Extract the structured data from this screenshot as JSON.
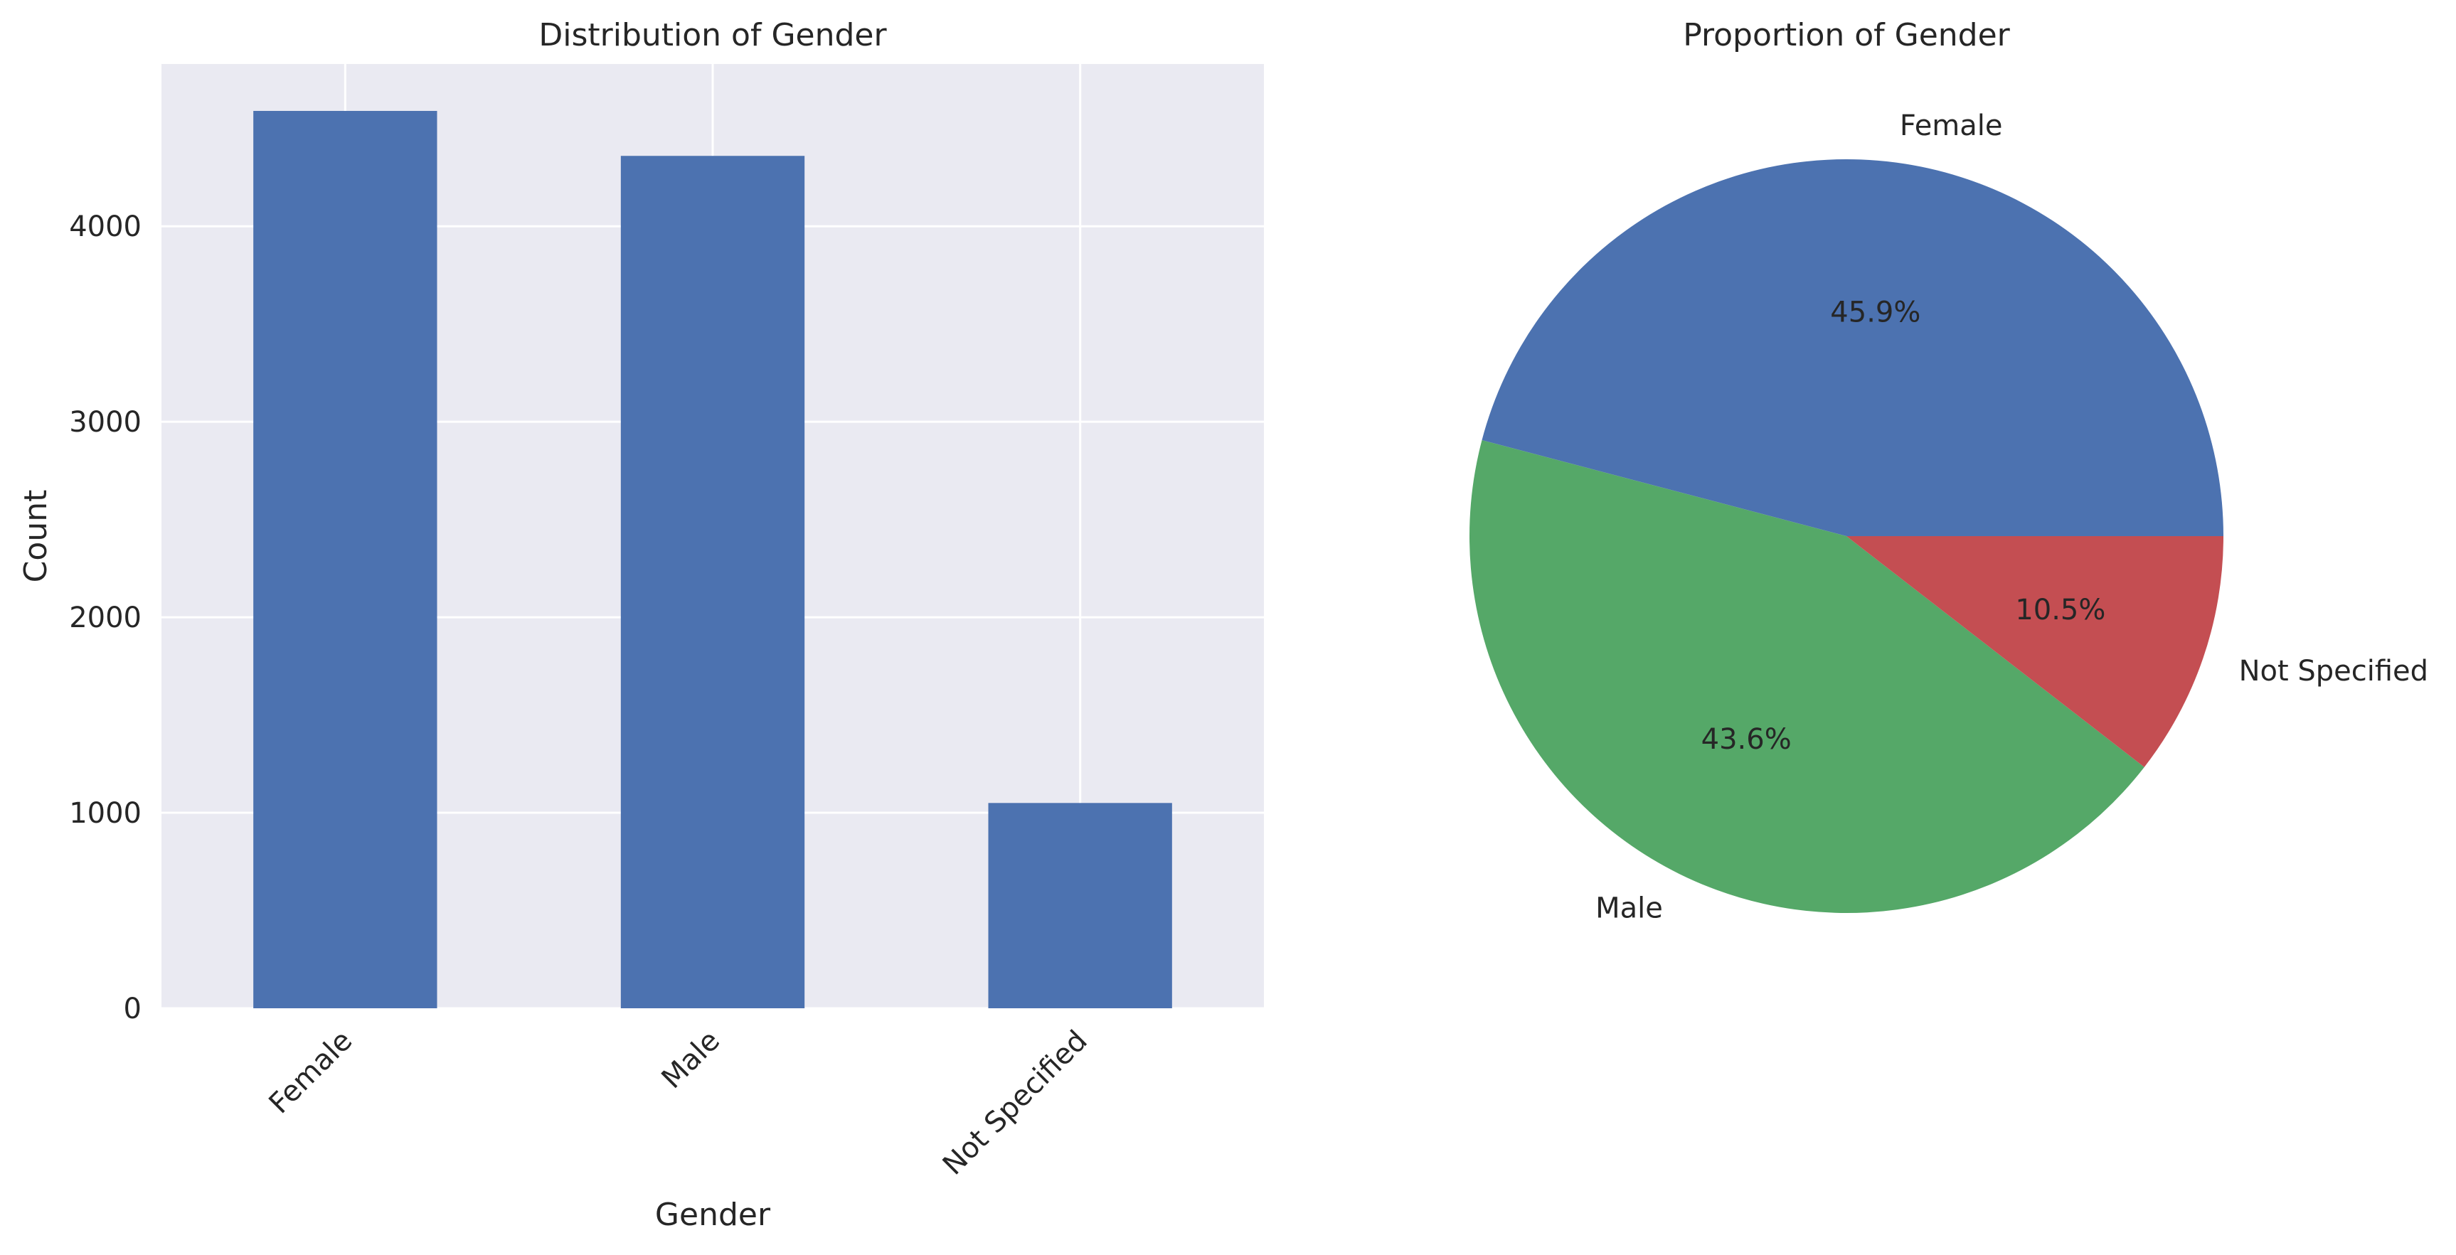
{
  "chart_data": [
    {
      "type": "bar",
      "title": "Distribution of Gender",
      "xlabel": "Gender",
      "ylabel": "Count",
      "categories": [
        "Female",
        "Male",
        "Not Specified"
      ],
      "values": [
        4590,
        4360,
        1050
      ],
      "ylim": [
        0,
        4830
      ],
      "yticks": [
        0,
        1000,
        2000,
        3000,
        4000
      ],
      "grid": true,
      "colors": {
        "background": "#EAEAF2",
        "bar": "#4C72B0",
        "grid": "#FFFFFF"
      }
    },
    {
      "type": "pie",
      "title": "Proportion of Gender",
      "labels": [
        "Female",
        "Male",
        "Not Specified"
      ],
      "values": [
        45.9,
        43.6,
        10.5
      ],
      "autopct": [
        "45.9%",
        "43.6%",
        "10.5%"
      ],
      "colors": [
        "#4C72B0",
        "#55A868",
        "#C44E52"
      ]
    }
  ]
}
